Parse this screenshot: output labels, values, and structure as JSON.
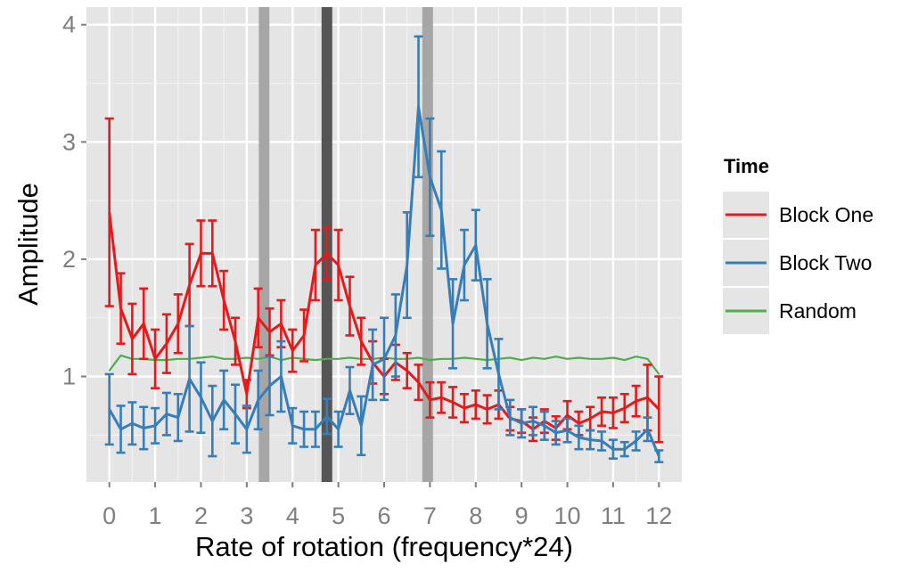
{
  "chart_data": {
    "type": "line",
    "xlabel": "Rate of rotation (frequency*24)",
    "ylabel": "Amplitude",
    "xlim": [
      -0.5,
      12.5
    ],
    "ylim": [
      0.1,
      4.15
    ],
    "x_ticks": [
      0,
      1,
      2,
      3,
      4,
      5,
      6,
      7,
      8,
      9,
      10,
      11,
      12
    ],
    "y_ticks": [
      1,
      2,
      3,
      4
    ],
    "grid": true,
    "legend_title": "Time",
    "legend_position": "right",
    "x": [
      0,
      0.25,
      0.5,
      0.75,
      1,
      1.25,
      1.5,
      1.75,
      2,
      2.25,
      2.5,
      2.75,
      3,
      3.25,
      3.5,
      3.75,
      4,
      4.25,
      4.5,
      4.75,
      5,
      5.25,
      5.5,
      5.75,
      6,
      6.25,
      6.5,
      6.75,
      7,
      7.25,
      7.5,
      7.75,
      8,
      8.25,
      8.5,
      8.75,
      9,
      9.25,
      9.5,
      9.75,
      10,
      10.25,
      10.5,
      10.75,
      11,
      11.25,
      11.5,
      11.75,
      12
    ],
    "vertical_bands": [
      {
        "x": 3.38,
        "color": "#a6a6a6"
      },
      {
        "x": 4.75,
        "color": "#555555"
      },
      {
        "x": 6.95,
        "color": "#a6a6a6"
      }
    ],
    "series": [
      {
        "name": "Block One",
        "color": "#e41a1c",
        "values": [
          2.4,
          1.58,
          1.32,
          1.45,
          1.15,
          1.28,
          1.45,
          1.78,
          2.05,
          2.05,
          1.65,
          1.3,
          0.85,
          1.5,
          1.38,
          1.45,
          1.22,
          1.35,
          1.95,
          2.05,
          1.95,
          1.6,
          1.3,
          1.12,
          1.0,
          1.12,
          1.05,
          0.95,
          0.8,
          0.82,
          0.78,
          0.73,
          0.76,
          0.72,
          0.76,
          0.64,
          0.62,
          0.55,
          0.62,
          0.56,
          0.67,
          0.6,
          0.64,
          0.7,
          0.69,
          0.73,
          0.79,
          0.82,
          0.72
        ],
        "err": [
          0.8,
          0.3,
          0.3,
          0.3,
          0.25,
          0.25,
          0.25,
          0.35,
          0.28,
          0.28,
          0.25,
          0.2,
          0.12,
          0.25,
          0.2,
          0.2,
          0.18,
          0.22,
          0.3,
          0.22,
          0.3,
          0.25,
          0.2,
          0.18,
          0.15,
          0.15,
          0.15,
          0.15,
          0.15,
          0.13,
          0.13,
          0.12,
          0.12,
          0.12,
          0.12,
          0.1,
          0.1,
          0.1,
          0.1,
          0.1,
          0.12,
          0.1,
          0.1,
          0.12,
          0.13,
          0.12,
          0.13,
          0.28,
          0.28
        ]
      },
      {
        "name": "Block Two",
        "color": "#377eb8",
        "values": [
          0.72,
          0.55,
          0.6,
          0.56,
          0.58,
          0.68,
          0.65,
          0.98,
          0.82,
          0.62,
          0.8,
          0.68,
          0.55,
          0.8,
          0.92,
          1.0,
          0.58,
          0.55,
          0.55,
          0.66,
          0.55,
          0.88,
          0.58,
          1.1,
          1.15,
          1.35,
          1.95,
          3.3,
          2.7,
          2.42,
          1.45,
          1.95,
          2.12,
          1.45,
          1.02,
          0.65,
          0.6,
          0.62,
          0.58,
          0.52,
          0.54,
          0.48,
          0.46,
          0.45,
          0.38,
          0.38,
          0.45,
          0.55,
          0.32
        ],
        "err": [
          0.3,
          0.2,
          0.18,
          0.18,
          0.15,
          0.18,
          0.2,
          0.45,
          0.3,
          0.3,
          0.25,
          0.25,
          0.2,
          0.25,
          0.25,
          0.3,
          0.15,
          0.15,
          0.15,
          0.15,
          0.15,
          0.2,
          0.25,
          0.3,
          0.35,
          0.35,
          0.45,
          0.6,
          0.5,
          0.5,
          0.38,
          0.3,
          0.3,
          0.38,
          0.3,
          0.15,
          0.12,
          0.12,
          0.12,
          0.1,
          0.1,
          0.1,
          0.08,
          0.08,
          0.08,
          0.06,
          0.08,
          0.1,
          0.05
        ]
      },
      {
        "name": "Random",
        "color": "#4daf4a",
        "values": [
          1.05,
          1.18,
          1.15,
          1.15,
          1.14,
          1.14,
          1.15,
          1.15,
          1.16,
          1.17,
          1.15,
          1.15,
          1.16,
          1.15,
          1.17,
          1.14,
          1.16,
          1.15,
          1.14,
          1.15,
          1.15,
          1.16,
          1.15,
          1.15,
          1.16,
          1.15,
          1.15,
          1.16,
          1.14,
          1.15,
          1.15,
          1.16,
          1.15,
          1.14,
          1.15,
          1.16,
          1.14,
          1.16,
          1.15,
          1.17,
          1.15,
          1.16,
          1.15,
          1.15,
          1.16,
          1.14,
          1.17,
          1.15,
          1.02
        ]
      }
    ]
  }
}
